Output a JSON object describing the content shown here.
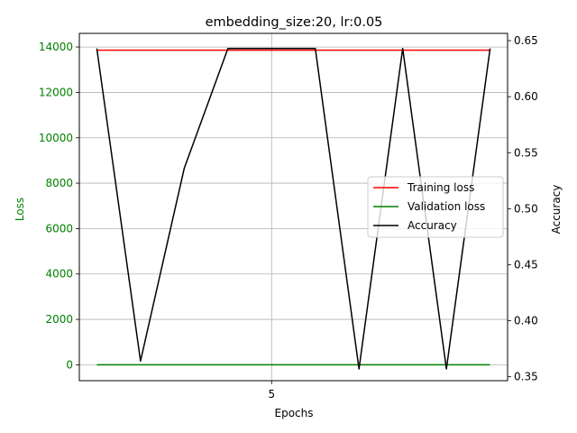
{
  "chart_data": {
    "type": "line",
    "title": "embedding_size:20, lr:0.05",
    "xlabel": "Epochs",
    "ylabel": "Loss",
    "y2label": "Accuracy",
    "x": [
      1,
      2,
      3,
      4,
      5,
      6,
      7,
      8,
      9,
      10
    ],
    "xlim": [
      0.6,
      10.4
    ],
    "xticks": [
      5
    ],
    "ylim": [
      -700,
      14600
    ],
    "yticks": [
      0,
      2000,
      4000,
      6000,
      8000,
      10000,
      12000,
      14000
    ],
    "y2lim": [
      0.3465,
      0.6565
    ],
    "y2ticks": [
      0.35,
      0.4,
      0.45,
      0.5,
      0.55,
      0.6,
      0.65
    ],
    "grid": true,
    "legend_position": "center-right",
    "colors": {
      "training_loss": "#ff0000",
      "validation_loss": "#008000",
      "accuracy": "#000000",
      "left_axis": "#008000"
    },
    "series": [
      {
        "name": "Training loss",
        "axis": "left",
        "color": "#ff0000",
        "values": [
          13860,
          13860,
          13860,
          13860,
          13860,
          13860,
          13860,
          13860,
          13860,
          13860
        ]
      },
      {
        "name": "Validation loss",
        "axis": "left",
        "color": "#008000",
        "values": [
          0,
          0,
          0,
          0,
          0,
          0,
          0,
          0,
          0,
          0
        ]
      },
      {
        "name": "Accuracy",
        "axis": "right",
        "color": "#000000",
        "values": [
          0.643,
          0.364,
          0.536,
          0.643,
          0.643,
          0.643,
          0.357,
          0.643,
          0.357,
          0.643
        ]
      }
    ]
  }
}
